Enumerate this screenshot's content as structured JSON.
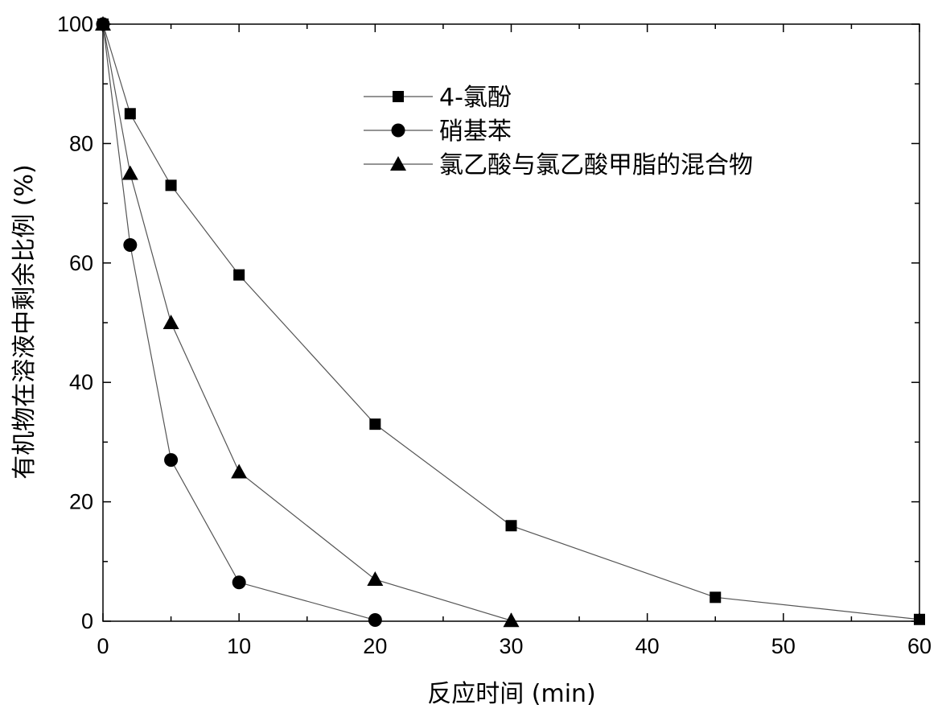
{
  "chart_data": {
    "type": "line",
    "xlabel": "反应时间 (min)",
    "ylabel": "有机物在溶液中剩余比例 (%)",
    "xlim": [
      0,
      60
    ],
    "ylim": [
      0,
      100
    ],
    "xticks": [
      0,
      10,
      20,
      30,
      40,
      50,
      60
    ],
    "yticks": [
      0,
      20,
      40,
      60,
      80,
      100
    ],
    "grid": false,
    "legend_position": "top-right",
    "series": [
      {
        "name": "4-氯酚",
        "marker": "square",
        "x": [
          0,
          2,
          5,
          10,
          20,
          30,
          45,
          60
        ],
        "y": [
          100,
          85,
          73,
          58,
          33,
          16,
          4,
          0.3
        ]
      },
      {
        "name": "硝基苯",
        "marker": "circle",
        "x": [
          0,
          2,
          5,
          10,
          20
        ],
        "y": [
          100,
          63,
          27,
          6.5,
          0.2
        ]
      },
      {
        "name": "氯乙酸与氯乙酸甲脂的混合物",
        "marker": "triangle",
        "x": [
          0,
          2,
          5,
          10,
          20,
          30
        ],
        "y": [
          100,
          75,
          50,
          25,
          7,
          0.1
        ]
      }
    ],
    "colors": {
      "marker": "#000000",
      "line": "#555555",
      "axis": "#000000"
    }
  }
}
